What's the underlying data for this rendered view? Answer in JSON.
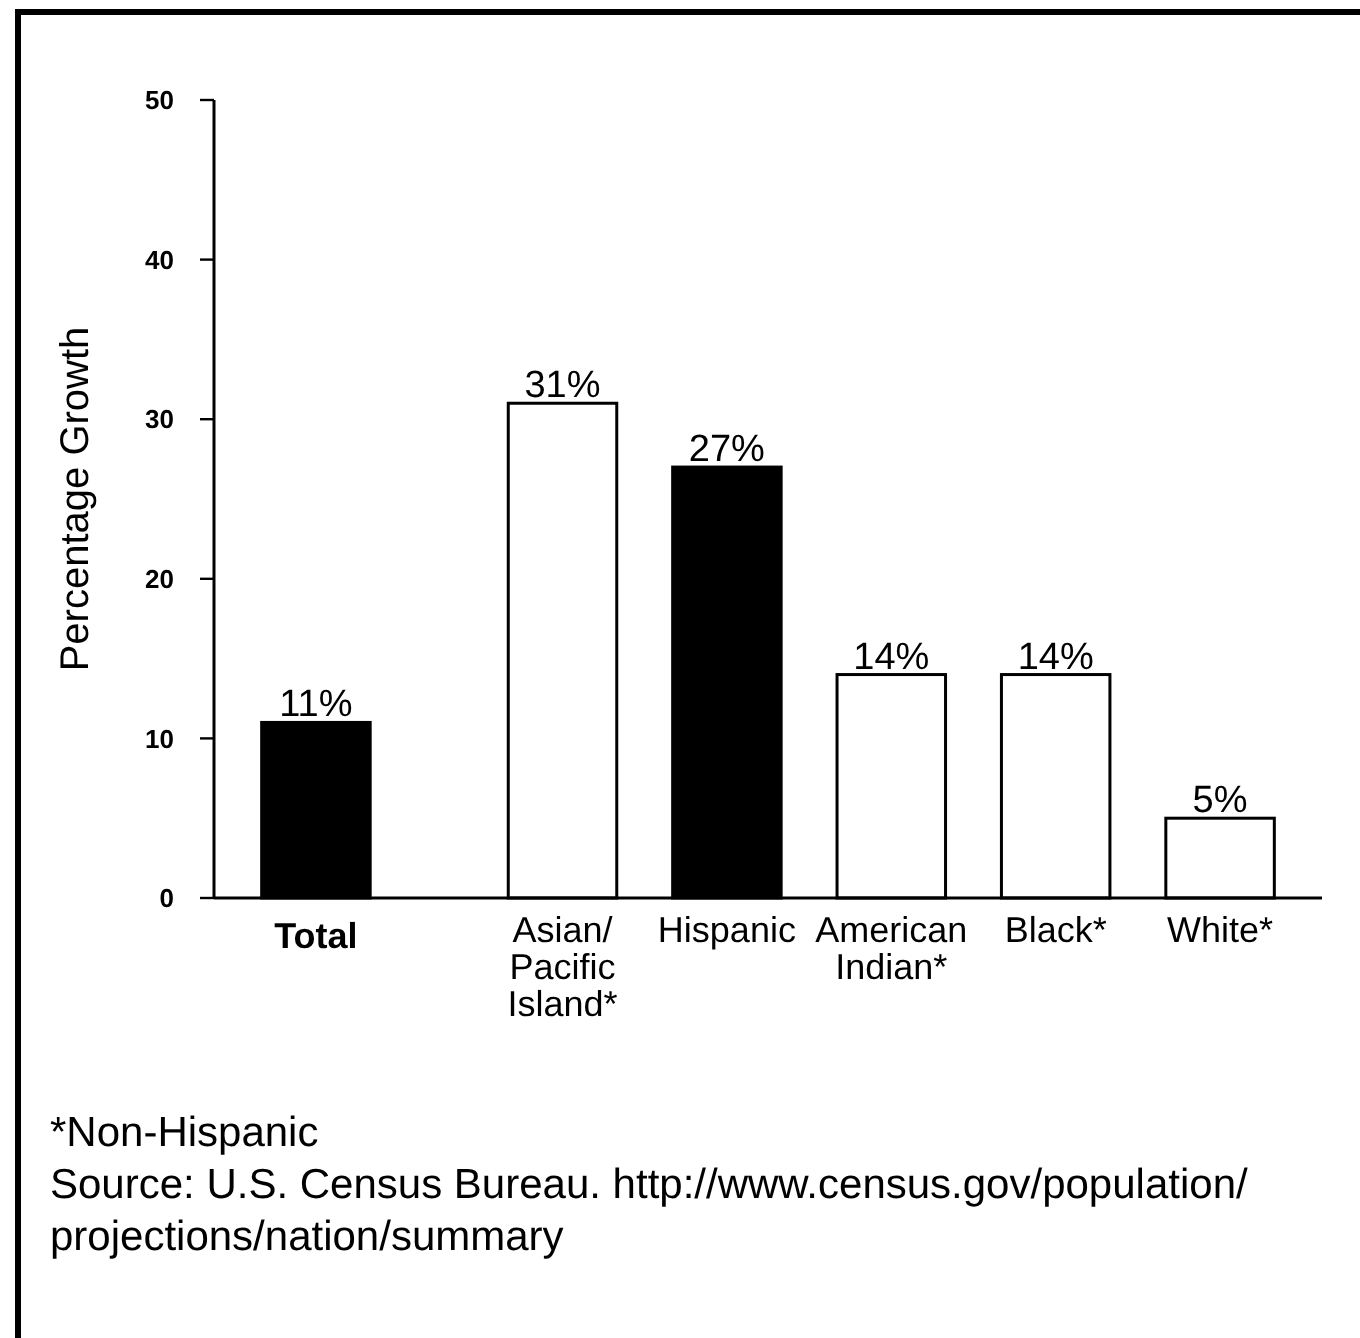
{
  "chart_data": {
    "type": "bar",
    "ylabel": "Percentage Growth",
    "categories": [
      "Total",
      "Asian/Pacific Island*",
      "Hispanic",
      "American Indian*",
      "Black*",
      "White*"
    ],
    "values": [
      11,
      31,
      27,
      14,
      14,
      5
    ],
    "colors": [
      "#000000",
      "#ffffff",
      "#000000",
      "#ffffff",
      "#ffffff",
      "#ffffff"
    ],
    "value_labels": [
      "11%",
      "31%",
      "27%",
      "14%",
      "14%",
      "5%"
    ],
    "ylim": [
      0,
      50
    ],
    "yticks": [
      0,
      10,
      20,
      30,
      40,
      50
    ],
    "annotations": [
      "*Non-Hispanic",
      "Source: U.S. Census Bureau. http://www.census.gov/population/projections/nation/summary"
    ]
  }
}
